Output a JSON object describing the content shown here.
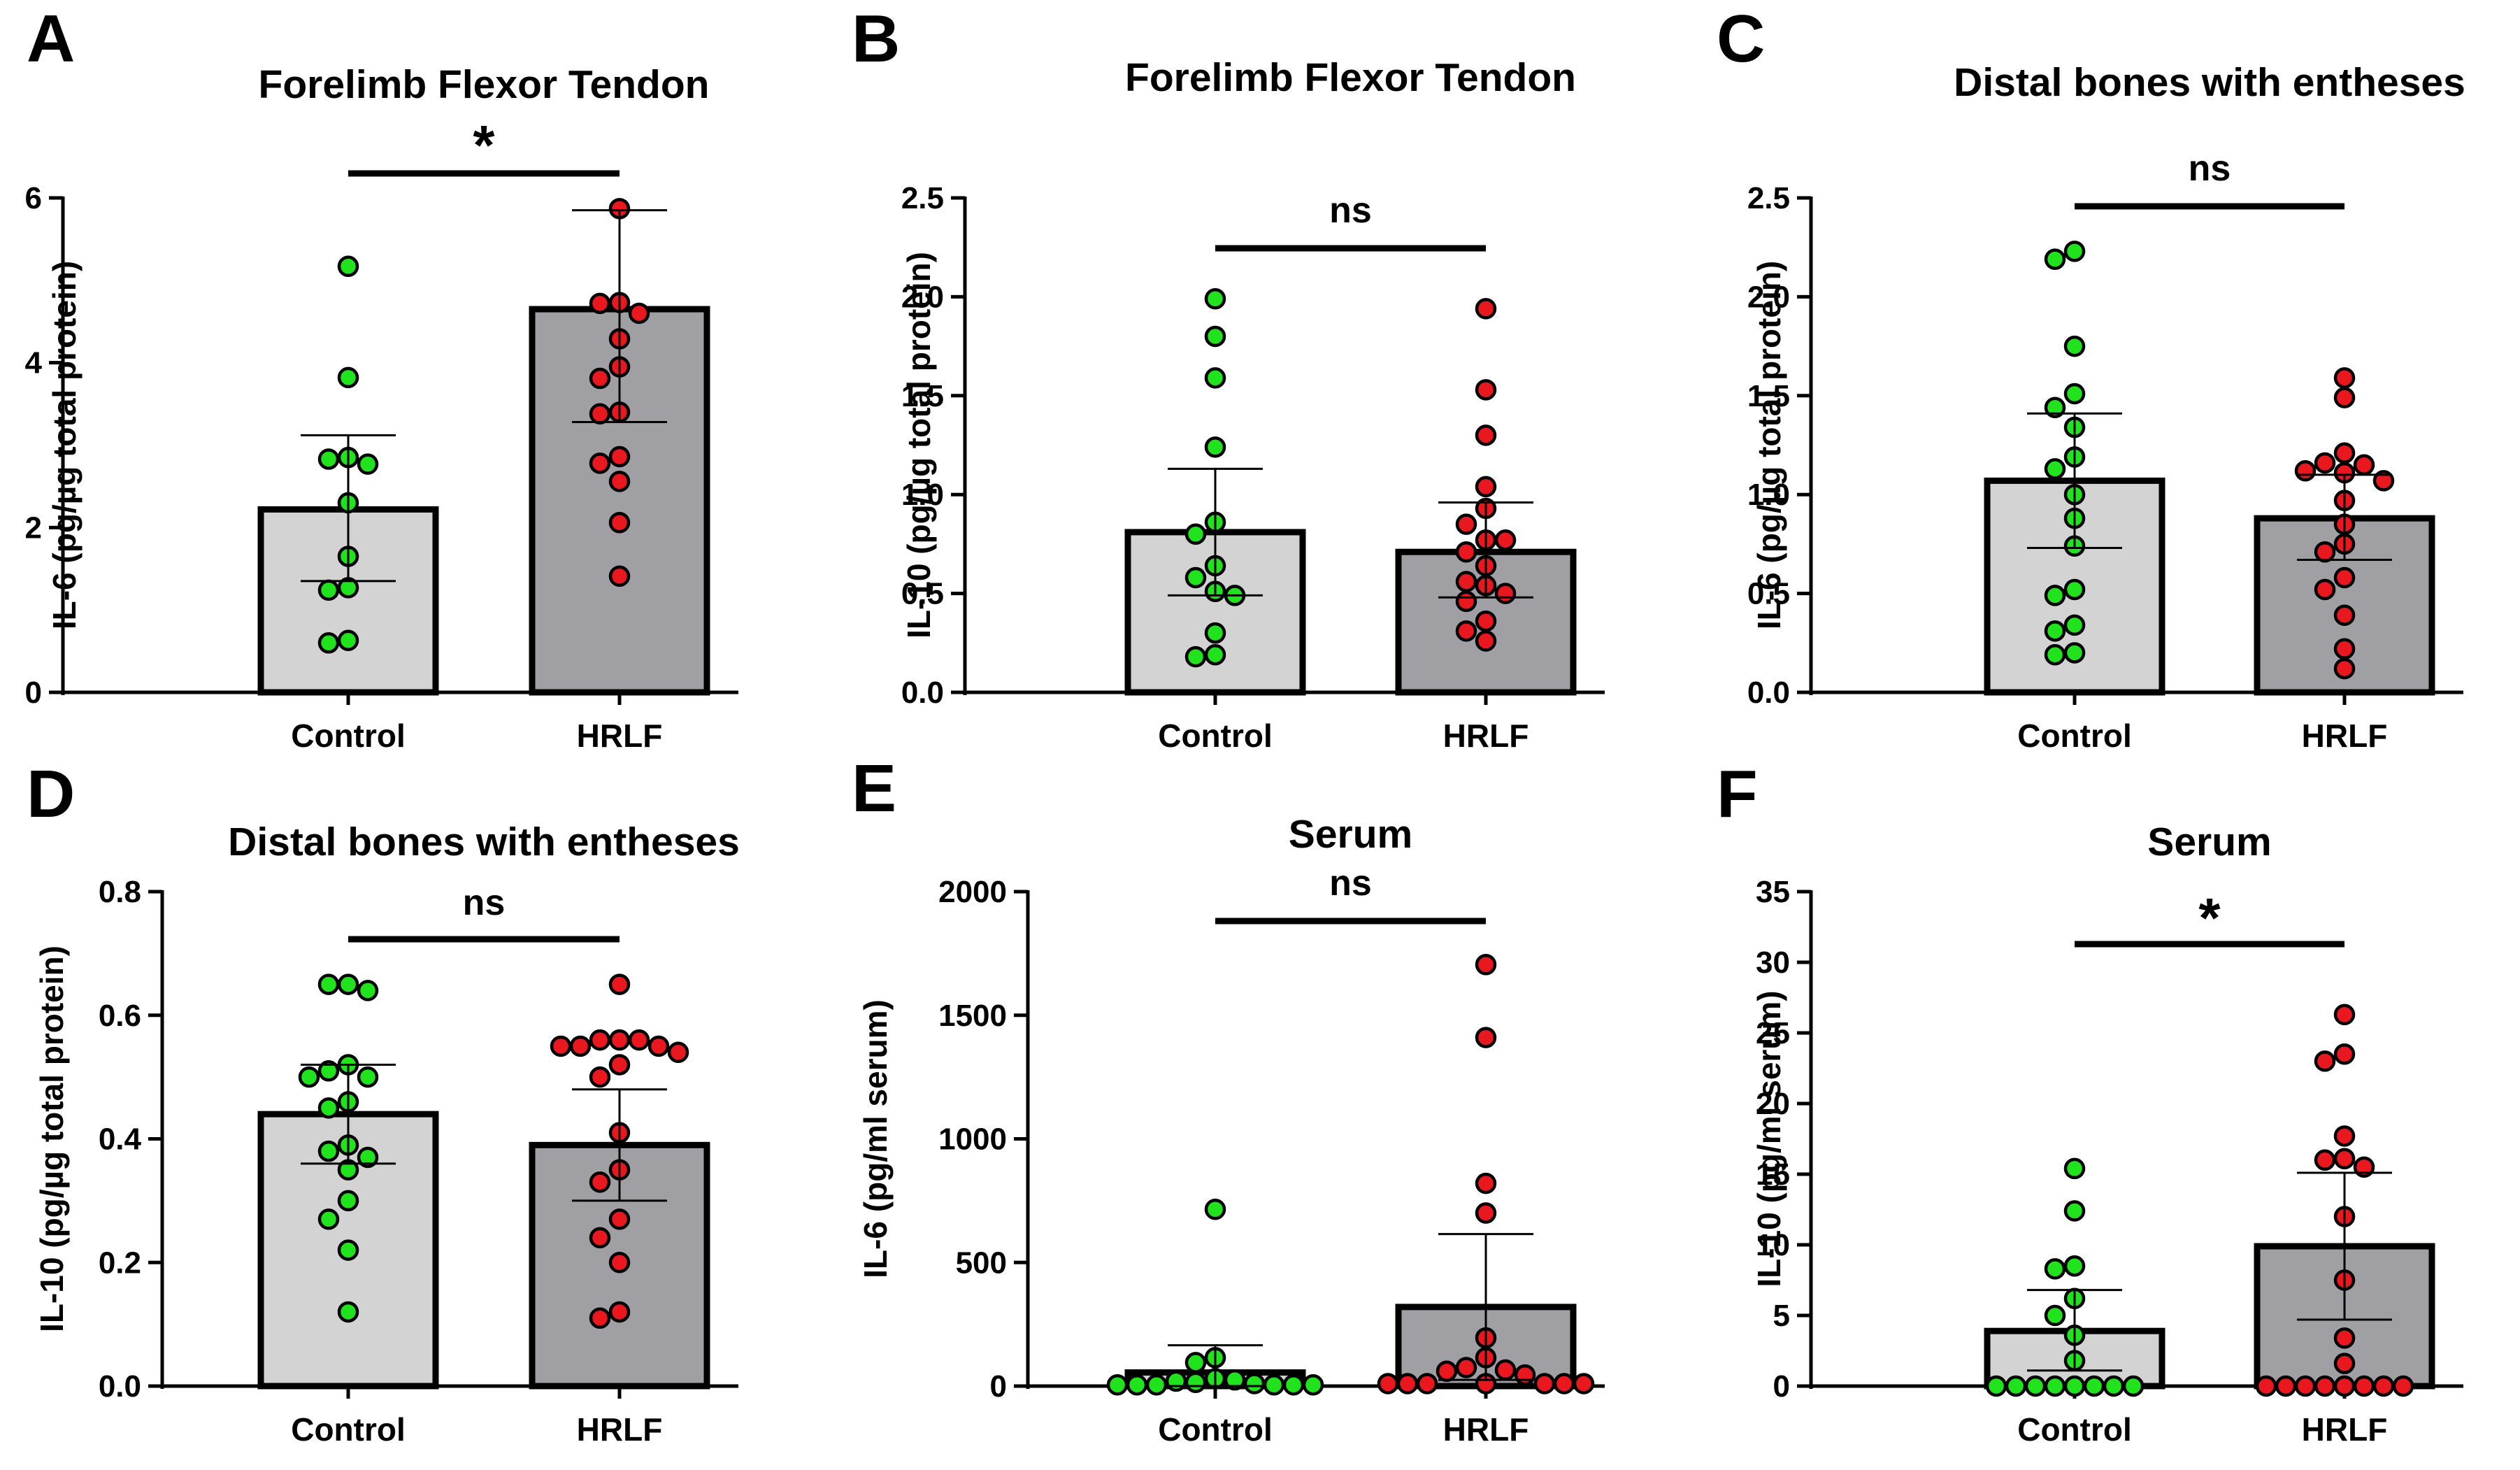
{
  "colors": {
    "control_bar": "#d3d3d3",
    "hrlf_bar": "#a0a0a4",
    "control_point": "#21e31d",
    "hrlf_point": "#e8181e",
    "outline": "#000000"
  },
  "chart_data": [
    {
      "panel": "A",
      "type": "bar",
      "title": "Forelimb Flexor Tendon",
      "ylabel": "IL-6 (pg/µg total protein)",
      "xlabel": "",
      "categories": [
        "Control",
        "HRLF"
      ],
      "ylim": [
        0,
        6
      ],
      "yticks": [
        "0",
        "2",
        "4",
        "6"
      ],
      "values": [
        2.22,
        4.65
      ],
      "errors": [
        [
          1.35,
          3.12
        ],
        [
          3.28,
          5.85
        ]
      ],
      "significance": "*",
      "points": [
        [
          5.17,
          3.82,
          2.85,
          2.83,
          2.77,
          2.3,
          1.65,
          1.27,
          1.24,
          0.63,
          0.6
        ],
        [
          5.87,
          4.73,
          4.72,
          4.6,
          4.29,
          3.95,
          3.81,
          3.4,
          3.38,
          2.86,
          2.78,
          2.56,
          2.06,
          1.41
        ]
      ]
    },
    {
      "panel": "B",
      "type": "bar",
      "title": "Forelimb Flexor Tendon",
      "ylabel": "IL-10 (pg/µg total protein)",
      "xlabel": "",
      "categories": [
        "Control",
        "HRLF"
      ],
      "ylim": [
        0,
        2.5
      ],
      "yticks": [
        "0.0",
        "0.5",
        "1.0",
        "1.5",
        "2.0",
        "2.5"
      ],
      "values": [
        0.81,
        0.71
      ],
      "errors": [
        [
          0.49,
          1.13
        ],
        [
          0.48,
          0.96
        ]
      ],
      "significance": "ns",
      "points": [
        [
          1.99,
          1.8,
          1.59,
          1.24,
          0.86,
          0.8,
          0.64,
          0.58,
          0.51,
          0.49,
          0.3,
          0.19,
          0.18
        ],
        [
          1.94,
          1.53,
          1.3,
          1.04,
          0.93,
          0.85,
          0.77,
          0.77,
          0.71,
          0.64,
          0.56,
          0.54,
          0.5,
          0.46,
          0.36,
          0.31,
          0.26
        ]
      ]
    },
    {
      "panel": "C",
      "type": "bar",
      "title": "Distal bones with entheses",
      "ylabel": "IL-6 (pg/µg total protein)",
      "xlabel": "",
      "categories": [
        "Control",
        "HRLF"
      ],
      "ylim": [
        0,
        2.5
      ],
      "yticks": [
        "0.0",
        "0.5",
        "1.0",
        "1.5",
        "2.0",
        "2.5"
      ],
      "values": [
        1.07,
        0.88
      ],
      "errors": [
        [
          0.73,
          1.41
        ],
        [
          0.67,
          1.1
        ]
      ],
      "significance": "ns",
      "points": [
        [
          2.23,
          2.19,
          1.75,
          1.51,
          1.44,
          1.34,
          1.19,
          1.13,
          1.0,
          0.88,
          0.74,
          0.52,
          0.49,
          0.34,
          0.31,
          0.2,
          0.19
        ],
        [
          1.59,
          1.49,
          1.21,
          1.16,
          1.15,
          1.12,
          1.11,
          1.07,
          0.97,
          0.85,
          0.75,
          0.71,
          0.58,
          0.52,
          0.39,
          0.22,
          0.12
        ]
      ]
    },
    {
      "panel": "D",
      "type": "bar",
      "title": "Distal bones with entheses",
      "ylabel": "IL-10 (pg/µg total protein)",
      "xlabel": "",
      "categories": [
        "Control",
        "HRLF"
      ],
      "ylim": [
        0,
        0.8
      ],
      "yticks": [
        "0.0",
        "0.2",
        "0.4",
        "0.6",
        "0.8"
      ],
      "values": [
        0.44,
        0.39
      ],
      "errors": [
        [
          0.36,
          0.52
        ],
        [
          0.3,
          0.48
        ]
      ],
      "significance": "ns",
      "points": [
        [
          0.65,
          0.65,
          0.64,
          0.52,
          0.51,
          0.5,
          0.5,
          0.46,
          0.45,
          0.39,
          0.38,
          0.37,
          0.35,
          0.3,
          0.27,
          0.22,
          0.12
        ],
        [
          0.65,
          0.56,
          0.56,
          0.56,
          0.55,
          0.55,
          0.55,
          0.54,
          0.52,
          0.5,
          0.41,
          0.35,
          0.33,
          0.27,
          0.24,
          0.2,
          0.12,
          0.11
        ]
      ]
    },
    {
      "panel": "E",
      "type": "bar",
      "title": "Serum",
      "ylabel": "IL-6 (pg/ml serum)",
      "xlabel": "",
      "categories": [
        "Control",
        "HRLF"
      ],
      "ylim": [
        0,
        2000
      ],
      "yticks": [
        "0",
        "500",
        "1000",
        "1500",
        "2000"
      ],
      "values": [
        55,
        320
      ],
      "errors": [
        [
          0,
          165
        ],
        [
          25,
          615
        ]
      ],
      "significance": "ns",
      "points": [
        [
          715,
          115,
          95,
          30,
          25,
          20,
          15,
          10,
          5,
          5,
          5,
          5,
          5,
          5
        ],
        [
          1705,
          1410,
          820,
          700,
          195,
          115,
          75,
          65,
          60,
          45,
          10,
          10,
          10,
          10,
          10,
          10,
          10
        ]
      ]
    },
    {
      "panel": "F",
      "type": "bar",
      "title": "Serum",
      "ylabel": "IL-10 (pg/ml serum)",
      "xlabel": "",
      "categories": [
        "Control",
        "HRLF"
      ],
      "ylim": [
        0,
        35
      ],
      "yticks": [
        "0",
        "5",
        "10",
        "15",
        "20",
        "25",
        "30",
        "35"
      ],
      "values": [
        3.9,
        9.9
      ],
      "errors": [
        [
          1.1,
          6.8
        ],
        [
          4.7,
          15.1
        ]
      ],
      "significance": "*",
      "points": [
        [
          15.4,
          12.4,
          8.5,
          8.3,
          6.2,
          5.0,
          3.6,
          1.8,
          0,
          0,
          0,
          0,
          0,
          0,
          0,
          0
        ],
        [
          26.3,
          23.5,
          23.0,
          17.7,
          16.1,
          16.0,
          15.5,
          12.0,
          7.5,
          3.4,
          1.6,
          0,
          0,
          0,
          0,
          0,
          0,
          0,
          0
        ]
      ]
    }
  ]
}
